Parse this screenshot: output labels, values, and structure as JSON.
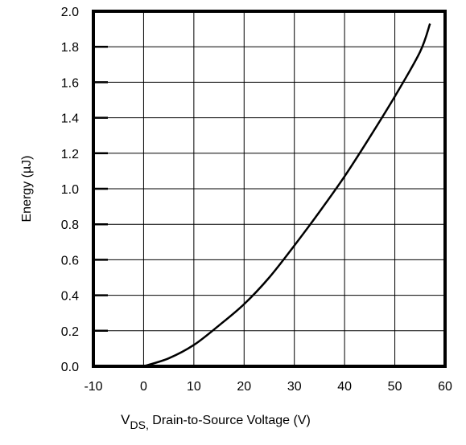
{
  "chart_data": {
    "type": "line",
    "title": "",
    "xlabel": {
      "main": "V",
      "subscript": "DS,",
      "rest": " Drain-to-Source Voltage (V)"
    },
    "ylabel": "Energy (µJ)",
    "xlim": [
      -10,
      60
    ],
    "ylim": [
      0,
      2.0
    ],
    "grid": true,
    "x_ticks": [
      -10,
      0,
      10,
      20,
      30,
      40,
      50,
      60
    ],
    "x_tick_labels": [
      "-10",
      "0",
      "10",
      "20",
      "30",
      "40",
      "50",
      "60"
    ],
    "y_ticks": [
      0,
      0.2,
      0.4,
      0.6,
      0.8,
      1.0,
      1.2,
      1.4,
      1.6,
      1.8,
      2.0
    ],
    "y_tick_labels": [
      "0.0",
      "0.2",
      "0.4",
      "0.6",
      "0.8",
      "1.0",
      "1.2",
      "1.4",
      "1.6",
      "1.8",
      "2.0"
    ],
    "series": [
      {
        "x": [
          0,
          5,
          10,
          15,
          20,
          25,
          30,
          35,
          40,
          45,
          50,
          55,
          57
        ],
        "y": [
          0,
          0.045,
          0.12,
          0.23,
          0.35,
          0.5,
          0.68,
          0.87,
          1.07,
          1.29,
          1.52,
          1.77,
          1.93
        ]
      }
    ]
  }
}
